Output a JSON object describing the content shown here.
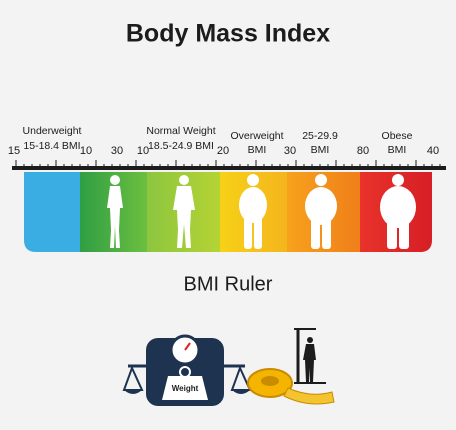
{
  "title": "Body Mass Index",
  "ruler": {
    "numbers": [
      15,
      10,
      30,
      10,
      20,
      30,
      80,
      40
    ],
    "categories": [
      {
        "name": "Underweight",
        "range": "15-18.4 BMI"
      },
      {
        "name": "Normal Weight",
        "range": "18.5-24.9 BMI"
      },
      {
        "name": "Overweight",
        "range": "BMI"
      },
      {
        "name": "25-29.9",
        "range": "BMI"
      },
      {
        "name": "Obese",
        "range": "BMI"
      }
    ]
  },
  "subtitle": "BMI Ruler",
  "icon_label": "Weight"
}
